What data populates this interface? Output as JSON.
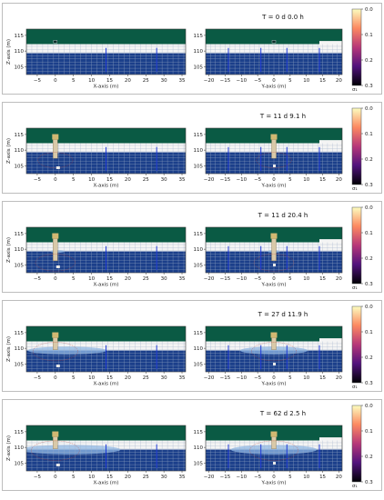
{
  "chart_data": {
    "type": "heatmap",
    "colors": {
      "ground": "#0a5a44",
      "unsaturated": "#f4f4f4",
      "saturated": "#1b3f8a",
      "wet_light": "#8fb8e6",
      "grid": "#9fb0c8",
      "well": "#1f3ad6",
      "source": "#d9c9a8",
      "plume": "#f4c97a"
    },
    "colorbar": {
      "ticks": [
        "0.0",
        "0.1",
        "0.2",
        "0.3"
      ],
      "label": "σ₁",
      "range": [
        0.0,
        0.3
      ],
      "stops": [
        "#fcfdbf",
        "#fc8961",
        "#b73779",
        "#51127c",
        "#000004"
      ]
    },
    "left_axis": {
      "xlabel": "X-axis (m)",
      "ylabel": "Z-axis (m)",
      "xticks": [
        "−5",
        "0",
        "5",
        "10",
        "15",
        "20",
        "25",
        "30",
        "35"
      ],
      "xrange": [
        -8,
        36
      ],
      "yticks": [
        "105",
        "110",
        "115"
      ],
      "yrange": [
        102.5,
        117
      ]
    },
    "right_axis": {
      "xlabel": "Y-axis (m)",
      "xticks": [
        "−20",
        "−15",
        "−10",
        "−5",
        "0",
        "5",
        "10",
        "15",
        "20"
      ],
      "xrange": [
        -21,
        21
      ],
      "yticks": [
        "105",
        "110",
        "115"
      ],
      "yrange": [
        102.5,
        117
      ]
    },
    "panels": [
      {
        "title": "T = 0 d  0.0 h",
        "source_depth": 0.0,
        "plume_extent": 0.0,
        "infiltration": 0.0
      },
      {
        "title": "T = 11 d  9.1 h",
        "source_depth": 0.55,
        "plume_extent": 0.4,
        "infiltration": 0.05
      },
      {
        "title": "T = 11 d  20.4 h",
        "source_depth": 0.65,
        "plume_extent": 0.55,
        "infiltration": 0.1
      },
      {
        "title": "T = 27 d  11.9 h",
        "source_depth": 0.35,
        "plume_extent": 0.7,
        "infiltration": 0.55
      },
      {
        "title": "T = 62 d  2.5 h",
        "source_depth": 0.35,
        "plume_extent": 0.8,
        "infiltration": 0.7
      }
    ]
  }
}
